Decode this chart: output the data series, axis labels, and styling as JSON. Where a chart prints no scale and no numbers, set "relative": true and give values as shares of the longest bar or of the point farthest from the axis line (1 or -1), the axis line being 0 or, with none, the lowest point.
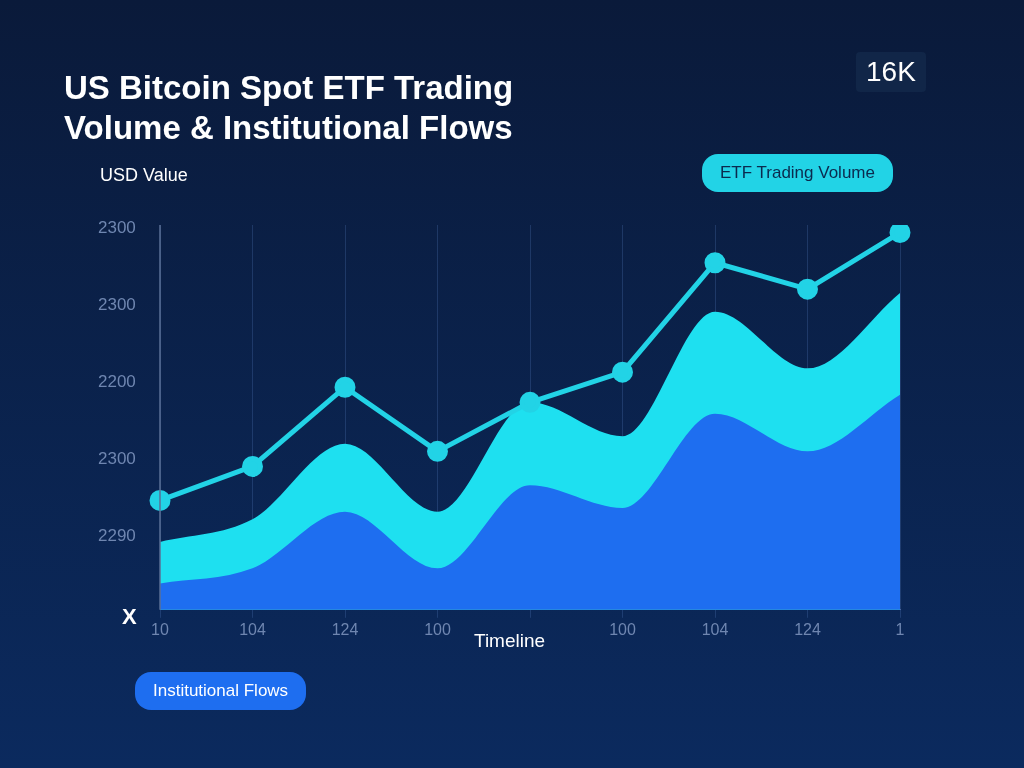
{
  "chart_data": {
    "type": "line",
    "title": "US Bitcoin Spot ETF Trading Volume & Institutional Flows",
    "xlabel": "Timeline",
    "ylabel": "USD Value",
    "relative": true,
    "grid": "x",
    "categories": [
      "10",
      "104",
      "124",
      "100",
      null,
      "100",
      "104",
      "124",
      "1"
    ],
    "series": [
      {
        "type": "area",
        "color": "#1ee0f0",
        "marker": "none",
        "values": [
          0.18,
          0.24,
          0.44,
          0.26,
          0.55,
          0.46,
          0.79,
          0.64,
          0.84
        ]
      },
      {
        "type": "area",
        "name": "Institutional Flows",
        "color": "#1e6ef0",
        "marker": "none",
        "values": [
          0.07,
          0.11,
          0.26,
          0.11,
          0.33,
          0.27,
          0.52,
          0.42,
          0.57
        ]
      },
      {
        "name": "ETF Trading Volume",
        "color": "#22d3e6",
        "marker": "circle",
        "values": [
          0.29,
          0.38,
          0.59,
          0.42,
          0.55,
          0.63,
          0.92,
          0.85,
          1
        ]
      }
    ],
    "annotations": [
      "2300",
      "2300",
      "2200",
      "2300",
      "2290",
      "X",
      "16K"
    ]
  }
}
